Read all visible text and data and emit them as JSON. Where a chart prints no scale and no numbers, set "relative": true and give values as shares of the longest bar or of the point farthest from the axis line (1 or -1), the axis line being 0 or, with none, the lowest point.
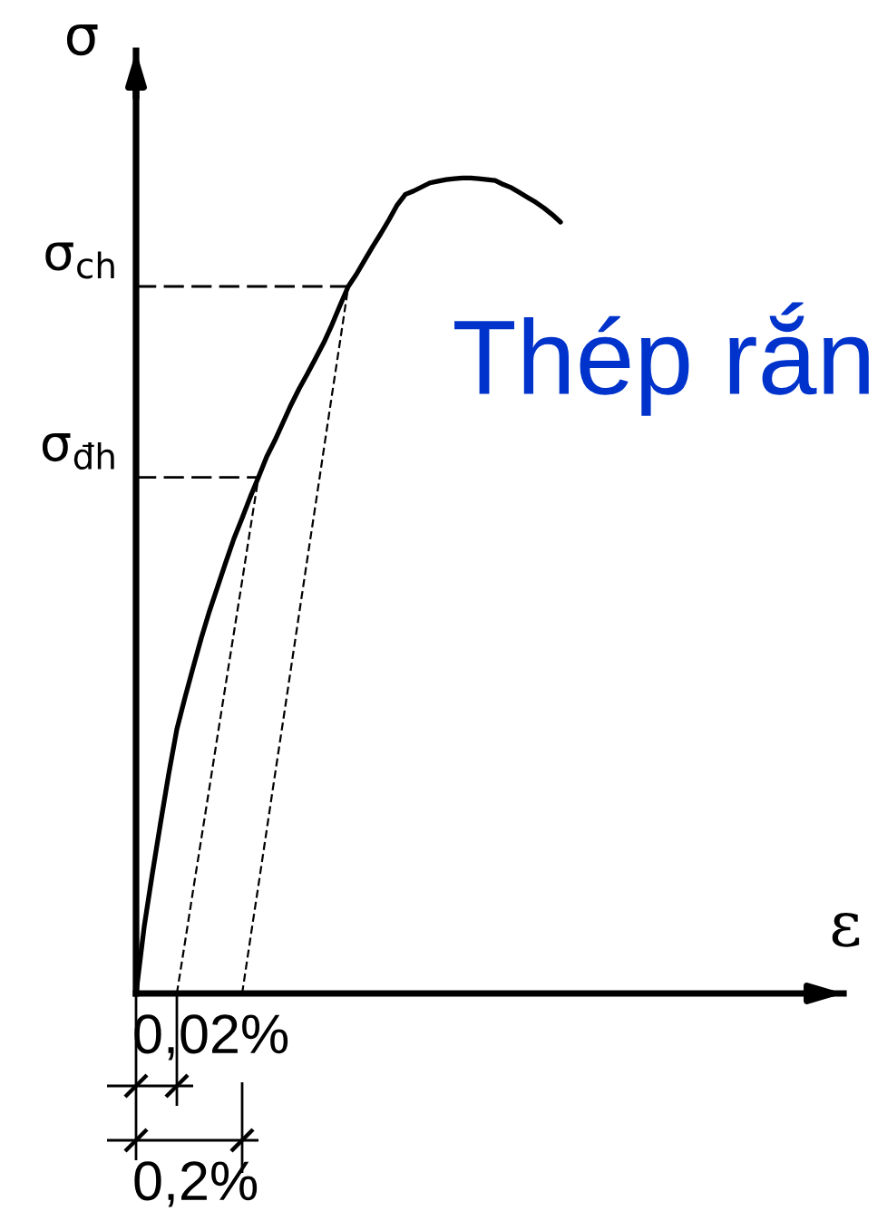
{
  "chart_data": {
    "type": "line",
    "title": "Thép rắn",
    "xlabel": "ε",
    "ylabel": "σ",
    "relative": true,
    "categories": [
      null,
      null,
      null,
      null,
      null,
      null,
      null,
      null,
      null,
      null,
      null,
      null,
      null,
      null,
      null,
      null,
      null,
      null,
      null,
      null,
      null,
      null,
      null,
      null,
      null,
      null,
      null,
      null,
      null,
      null,
      null,
      null,
      null,
      null,
      null,
      null,
      null,
      null,
      null,
      null,
      null,
      null,
      null,
      null,
      null,
      null,
      null,
      null,
      null,
      null,
      null,
      null,
      null
    ],
    "series": [
      {
        "color": "#000000",
        "line_style": "solid",
        "values": [
          0,
          0.082,
          0.147,
          0.209,
          0.269,
          0.324,
          0.363,
          0.4,
          0.436,
          0.469,
          0.499,
          0.529,
          0.558,
          0.583,
          0.609,
          0.633,
          0.658,
          0.678,
          0.7,
          0.722,
          0.742,
          0.76,
          0.779,
          0.798,
          0.82,
          0.844,
          0.867,
          0.882,
          0.899,
          0.916,
          0.932,
          0.949,
          0.967,
          0.98,
          0.984,
          0.989,
          0.994,
          0.996,
          0.998,
          0.999,
          1,
          1,
          0.999,
          0.998,
          0.997,
          0.992,
          0.988,
          0.982,
          0.976,
          0.97,
          0.963,
          0.955,
          0.946
        ]
      },
      {
        "color": "#000000",
        "line_style": "dashed",
        "values": [
          null,
          null,
          null,
          null,
          null,
          0,
          0.063,
          0.127,
          0.19,
          0.253,
          0.317,
          0.38,
          0.443,
          0.506,
          0.57,
          0.633,
          null,
          null,
          null,
          null,
          null,
          null,
          null,
          null,
          null,
          null,
          null,
          null,
          null,
          null,
          null,
          null,
          null,
          null,
          null,
          null,
          null,
          null,
          null,
          null,
          null,
          null,
          null,
          null,
          null,
          null,
          null,
          null,
          null,
          null,
          null,
          null,
          null
        ]
      },
      {
        "color": "#000000",
        "line_style": "dashed",
        "values": [
          null,
          null,
          null,
          null,
          null,
          null,
          null,
          null,
          null,
          null,
          null,
          null,
          null,
          0,
          0.067,
          0.133,
          0.2,
          0.267,
          0.333,
          0.4,
          0.467,
          0.534,
          0.6,
          0.667,
          0.734,
          0.8,
          0.867,
          null,
          null,
          null,
          null,
          null,
          null,
          null,
          null,
          null,
          null,
          null,
          null,
          null,
          null,
          null,
          null,
          null,
          null,
          null,
          null,
          null,
          null,
          null,
          null,
          null,
          null
        ]
      }
    ],
    "ref_lines": [
      {
        "axis": "y",
        "value": 0.867,
        "label": "σ$_{ch}$",
        "color": "#000000",
        "line_style": "dashed"
      },
      {
        "axis": "y",
        "value": 0.633,
        "label": "σ$_{đh}$",
        "color": "#000000",
        "line_style": "dashed"
      }
    ],
    "annotations": [
      "0,02%",
      "0,2%"
    ]
  }
}
